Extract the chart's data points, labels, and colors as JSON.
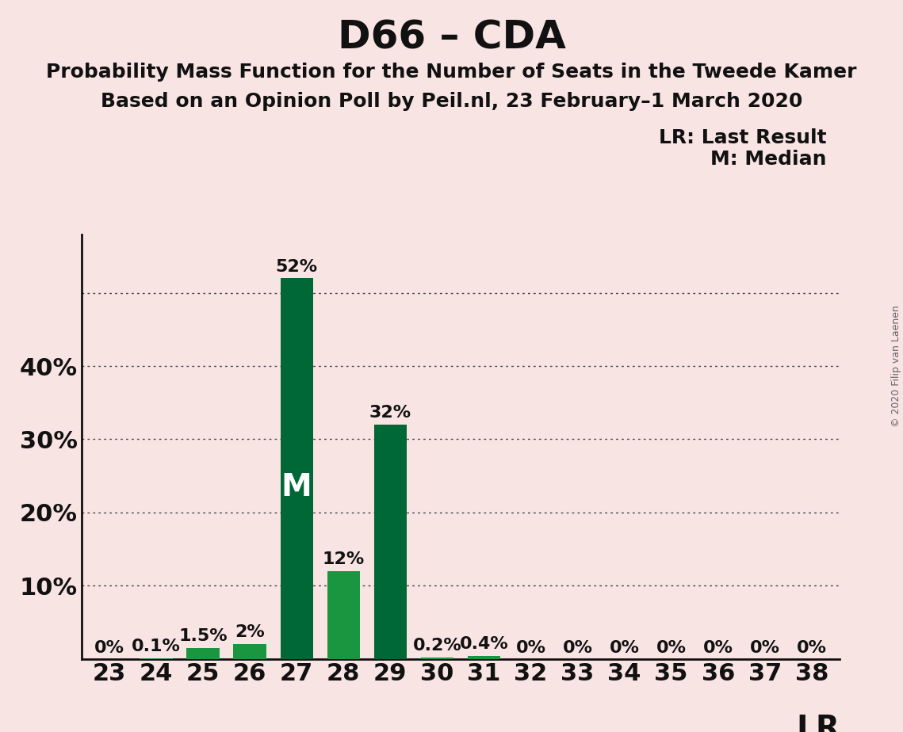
{
  "title": "D66 – CDA",
  "subtitle1": "Probability Mass Function for the Number of Seats in the Tweede Kamer",
  "subtitle2": "Based on an Opinion Poll by Peil.nl, 23 February–1 March 2020",
  "copyright": "© 2020 Filip van Laenen",
  "legend_lr": "LR: Last Result",
  "legend_m": "M: Median",
  "seats": [
    23,
    24,
    25,
    26,
    27,
    28,
    29,
    30,
    31,
    32,
    33,
    34,
    35,
    36,
    37,
    38
  ],
  "probabilities": [
    0.0,
    0.1,
    1.5,
    2.0,
    52.0,
    12.0,
    32.0,
    0.2,
    0.4,
    0.0,
    0.0,
    0.0,
    0.0,
    0.0,
    0.0,
    0.0
  ],
  "labels": [
    "0%",
    "0.1%",
    "1.5%",
    "2%",
    "52%",
    "12%",
    "32%",
    "0.2%",
    "0.4%",
    "0%",
    "0%",
    "0%",
    "0%",
    "0%",
    "0%",
    "0%"
  ],
  "bar_colors": [
    "#1a9641",
    "#1a9641",
    "#1a9641",
    "#1a9641",
    "#006837",
    "#1a9641",
    "#006837",
    "#1a9641",
    "#1a9641",
    "#1a9641",
    "#1a9641",
    "#1a9641",
    "#1a9641",
    "#1a9641",
    "#1a9641",
    "#1a9641"
  ],
  "median_seat": 27,
  "lr_seat": 38,
  "background_color": "#f9e4e4",
  "ylim": [
    0,
    58
  ],
  "grid_vals": [
    10,
    20,
    30,
    40,
    50
  ],
  "ytick_vals": [
    10,
    20,
    30,
    40
  ],
  "ytick_labels": [
    "10%",
    "20%",
    "30%",
    "40%"
  ],
  "grid_color": "#444444",
  "title_fontsize": 36,
  "subtitle_fontsize": 18,
  "axis_fontsize": 22,
  "bar_label_fontsize": 16,
  "median_label_fontsize": 28,
  "legend_fontsize": 18,
  "lr_label_fontsize": 28
}
